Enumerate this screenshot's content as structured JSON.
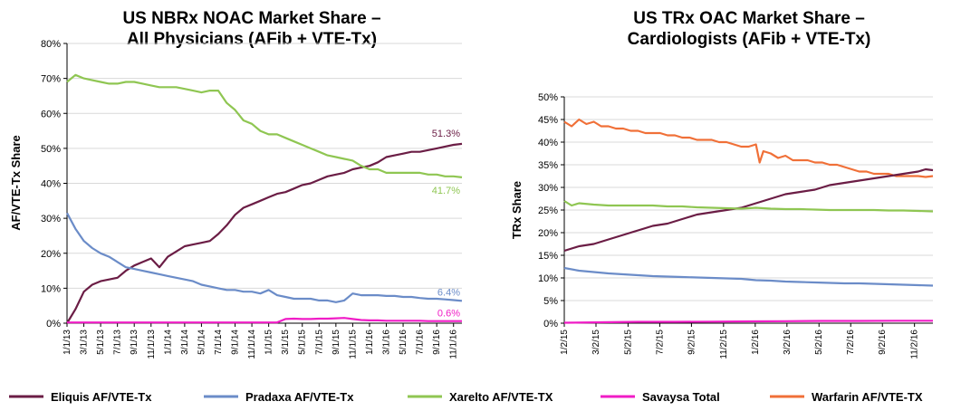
{
  "colors": {
    "eliquis": "#6b1d45",
    "pradaxa": "#6b8cc8",
    "xarelto": "#8fc652",
    "savaysa": "#f01cc6",
    "warfarin": "#f07038",
    "grid": "#d9d9d9",
    "axis": "#000000"
  },
  "legend": {
    "items": [
      {
        "key": "eliquis",
        "label": "Eliquis AF/VTE-Tx"
      },
      {
        "key": "pradaxa",
        "label": "Pradaxa AF/VTE-Tx"
      },
      {
        "key": "xarelto",
        "label": "Xarelto AF/VTE-TX"
      },
      {
        "key": "savaysa",
        "label": "Savaysa Total"
      },
      {
        "key": "warfarin",
        "label": "Warfarin AF/VTE-TX"
      }
    ]
  },
  "chart_data": [
    {
      "type": "line",
      "title_lines": [
        "US NBRx NOAC Market Share –",
        "All Physicians (AFib + VTE-Tx)"
      ],
      "ylabel": "AF/VTE-Tx  Share",
      "xlabel": "",
      "ylim": [
        0,
        80
      ],
      "yticks": [
        "0%",
        "10%",
        "20%",
        "30%",
        "40%",
        "50%",
        "60%",
        "70%",
        "80%"
      ],
      "x_range": [
        0,
        47
      ],
      "xticks": [
        {
          "x": 0,
          "label": "1/1/13"
        },
        {
          "x": 2,
          "label": "3/1/13"
        },
        {
          "x": 4,
          "label": "5/1/13"
        },
        {
          "x": 6,
          "label": "7/1/13"
        },
        {
          "x": 8,
          "label": "9/1/13"
        },
        {
          "x": 10,
          "label": "11/1/13"
        },
        {
          "x": 12,
          "label": "1/1/14"
        },
        {
          "x": 14,
          "label": "3/1/14"
        },
        {
          "x": 16,
          "label": "5/1/14"
        },
        {
          "x": 18,
          "label": "7/1/14"
        },
        {
          "x": 20,
          "label": "9/1/14"
        },
        {
          "x": 22,
          "label": "11/1/14"
        },
        {
          "x": 24,
          "label": "1/1/15"
        },
        {
          "x": 26,
          "label": "3/1/15"
        },
        {
          "x": 28,
          "label": "5/1/15"
        },
        {
          "x": 30,
          "label": "7/1/15"
        },
        {
          "x": 32,
          "label": "9/1/15"
        },
        {
          "x": 34,
          "label": "11/1/15"
        },
        {
          "x": 36,
          "label": "1/1/16"
        },
        {
          "x": 38,
          "label": "3/1/16"
        },
        {
          "x": 40,
          "label": "5/1/16"
        },
        {
          "x": 42,
          "label": "7/1/16"
        },
        {
          "x": 44,
          "label": "9/1/16"
        },
        {
          "x": 46,
          "label": "11/1/16"
        }
      ],
      "series": [
        {
          "key": "eliquis",
          "name": "Eliquis AF/VTE-Tx",
          "x": [
            0,
            1,
            2,
            3,
            4,
            5,
            6,
            7,
            8,
            9,
            10,
            11,
            12,
            13,
            14,
            15,
            16,
            17,
            18,
            19,
            20,
            21,
            22,
            23,
            24,
            25,
            26,
            27,
            28,
            29,
            30,
            31,
            32,
            33,
            34,
            35,
            36,
            37,
            38,
            39,
            40,
            41,
            42,
            43,
            44,
            45,
            46,
            47
          ],
          "values": [
            0,
            4,
            9,
            11,
            12,
            12.5,
            13,
            15,
            16.5,
            17.5,
            18.5,
            16,
            19,
            20.5,
            22,
            22.5,
            23,
            23.5,
            25.5,
            28,
            31,
            33,
            34,
            35,
            36,
            37,
            37.5,
            38.5,
            39.5,
            40,
            41,
            42,
            42.5,
            43,
            44,
            44.5,
            45,
            46,
            47.5,
            48,
            48.5,
            49,
            49,
            49.5,
            50,
            50.5,
            51,
            51.3
          ]
        },
        {
          "key": "pradaxa",
          "name": "Pradaxa AF/VTE-Tx",
          "x": [
            0,
            1,
            2,
            3,
            4,
            5,
            6,
            7,
            8,
            9,
            10,
            11,
            12,
            13,
            14,
            15,
            16,
            17,
            18,
            19,
            20,
            21,
            22,
            23,
            24,
            25,
            26,
            27,
            28,
            29,
            30,
            31,
            32,
            33,
            34,
            35,
            36,
            37,
            38,
            39,
            40,
            41,
            42,
            43,
            44,
            45,
            46,
            47
          ],
          "values": [
            31.5,
            27,
            23.5,
            21.5,
            20,
            19,
            17.5,
            16,
            15.5,
            15,
            14.5,
            14,
            13.5,
            13,
            12.5,
            12,
            11,
            10.5,
            10,
            9.5,
            9.5,
            9,
            9,
            8.5,
            9.5,
            8,
            7.5,
            7,
            7,
            7,
            6.5,
            6.5,
            6,
            6.5,
            8.5,
            8,
            8,
            8,
            7.8,
            7.8,
            7.5,
            7.5,
            7.2,
            7,
            7,
            6.8,
            6.6,
            6.4
          ]
        },
        {
          "key": "xarelto",
          "name": "Xarelto AF/VTE-TX",
          "x": [
            0,
            1,
            2,
            3,
            4,
            5,
            6,
            7,
            8,
            9,
            10,
            11,
            12,
            13,
            14,
            15,
            16,
            17,
            18,
            19,
            20,
            21,
            22,
            23,
            24,
            25,
            26,
            27,
            28,
            29,
            30,
            31,
            32,
            33,
            34,
            35,
            36,
            37,
            38,
            39,
            40,
            41,
            42,
            43,
            44,
            45,
            46,
            47
          ],
          "values": [
            69,
            71,
            70,
            69.5,
            69,
            68.5,
            68.5,
            69,
            69,
            68.5,
            68,
            67.5,
            67.5,
            67.5,
            67,
            66.5,
            66,
            66.5,
            66.5,
            63,
            61,
            58,
            57,
            55,
            54,
            54,
            53,
            52,
            51,
            50,
            49,
            48,
            47.5,
            47,
            46.5,
            45,
            44,
            44,
            43,
            43,
            43,
            43,
            43,
            42.5,
            42.5,
            42,
            42,
            41.7
          ]
        },
        {
          "key": "savaysa",
          "name": "Savaysa Total",
          "x": [
            0,
            1,
            2,
            3,
            4,
            5,
            6,
            7,
            8,
            9,
            10,
            11,
            12,
            13,
            14,
            15,
            16,
            17,
            18,
            19,
            20,
            21,
            22,
            23,
            24,
            25,
            26,
            27,
            28,
            29,
            30,
            31,
            32,
            33,
            34,
            35,
            36,
            37,
            38,
            39,
            40,
            41,
            42,
            43,
            44,
            45,
            46,
            47
          ],
          "values": [
            0.2,
            0.2,
            0.2,
            0.2,
            0.2,
            0.2,
            0.2,
            0.2,
            0.2,
            0.2,
            0.2,
            0.2,
            0.2,
            0.2,
            0.2,
            0.2,
            0.2,
            0.2,
            0.2,
            0.2,
            0.2,
            0.2,
            0.2,
            0.2,
            0.2,
            0.2,
            1.2,
            1.3,
            1.2,
            1.2,
            1.3,
            1.3,
            1.4,
            1.5,
            1.2,
            0.9,
            0.8,
            0.8,
            0.7,
            0.7,
            0.7,
            0.7,
            0.7,
            0.6,
            0.6,
            0.6,
            0.6,
            0.6
          ]
        }
      ],
      "end_labels": [
        {
          "key": "eliquis",
          "text": "51.3%",
          "value": 51.3,
          "dy": -12
        },
        {
          "key": "xarelto",
          "text": "41.7%",
          "value": 41.7,
          "dy": 14
        },
        {
          "key": "pradaxa",
          "text": "6.4%",
          "value": 6.4,
          "dy": -10
        },
        {
          "key": "savaysa",
          "text": "0.6%",
          "value": 0.6,
          "dy": -9
        }
      ]
    },
    {
      "type": "line",
      "title_lines": [
        "US TRx OAC Market Share –",
        "Cardiologists (AFib + VTE-Tx)"
      ],
      "ylabel": "TRx Share",
      "xlabel": "",
      "ylim": [
        0,
        50
      ],
      "yticks": [
        "0%",
        "5%",
        "10%",
        "15%",
        "20%",
        "25%",
        "30%",
        "35%",
        "40%",
        "45%",
        "50%"
      ],
      "x_range": [
        0,
        100
      ],
      "xticks": [
        {
          "x": 0,
          "label": "1/2/15"
        },
        {
          "x": 8.6,
          "label": "3/2/15"
        },
        {
          "x": 17.3,
          "label": "5/2/15"
        },
        {
          "x": 25.9,
          "label": "7/2/15"
        },
        {
          "x": 34.5,
          "label": "9/2/15"
        },
        {
          "x": 43.2,
          "label": "11/2/15"
        },
        {
          "x": 51.8,
          "label": "1/2/16"
        },
        {
          "x": 60.4,
          "label": "3/2/16"
        },
        {
          "x": 69.1,
          "label": "5/2/16"
        },
        {
          "x": 77.7,
          "label": "7/2/16"
        },
        {
          "x": 86.3,
          "label": "9/2/16"
        },
        {
          "x": 95.0,
          "label": "11/2/16"
        }
      ],
      "series": [
        {
          "key": "warfarin",
          "name": "Warfarin AF/VTE-TX",
          "x": [
            0,
            2,
            4,
            6,
            8,
            10,
            12,
            14,
            16,
            18,
            20,
            22,
            24,
            26,
            28,
            30,
            32,
            34,
            36,
            38,
            40,
            42,
            44,
            46,
            48,
            50,
            52,
            53,
            54,
            56,
            58,
            60,
            62,
            64,
            66,
            68,
            70,
            72,
            74,
            76,
            78,
            80,
            82,
            84,
            86,
            88,
            90,
            92,
            94,
            96,
            98,
            100
          ],
          "values": [
            44.5,
            43.5,
            45,
            44,
            44.5,
            43.5,
            43.5,
            43,
            43,
            42.5,
            42.5,
            42,
            42,
            42,
            41.5,
            41.5,
            41,
            41,
            40.5,
            40.5,
            40.5,
            40,
            40,
            39.5,
            39,
            39,
            39.5,
            35.5,
            38,
            37.5,
            36.5,
            37,
            36,
            36,
            36,
            35.5,
            35.5,
            35,
            35,
            34.5,
            34,
            33.5,
            33.5,
            33,
            33,
            33,
            32.5,
            32.5,
            32.5,
            32.5,
            32.3,
            32.5
          ]
        },
        {
          "key": "eliquis",
          "name": "Eliquis AF/VTE-Tx",
          "x": [
            0,
            4,
            8,
            12,
            16,
            20,
            24,
            28,
            32,
            36,
            40,
            44,
            48,
            50,
            52,
            54,
            56,
            60,
            64,
            68,
            72,
            76,
            80,
            84,
            88,
            92,
            96,
            98,
            100
          ],
          "values": [
            16,
            17,
            17.5,
            18.5,
            19.5,
            20.5,
            21.5,
            22,
            23,
            24,
            24.5,
            25,
            25.5,
            26,
            26.5,
            27,
            27.5,
            28.5,
            29,
            29.5,
            30.5,
            31,
            31.5,
            32,
            32.5,
            33,
            33.5,
            34,
            33.8
          ]
        },
        {
          "key": "xarelto",
          "name": "Xarelto AF/VTE-TX",
          "x": [
            0,
            2,
            4,
            8,
            12,
            16,
            20,
            24,
            28,
            32,
            36,
            40,
            44,
            48,
            52,
            56,
            60,
            64,
            68,
            72,
            76,
            80,
            84,
            88,
            92,
            96,
            100
          ],
          "values": [
            27,
            26,
            26.5,
            26.2,
            26,
            26,
            26,
            26,
            25.8,
            25.8,
            25.6,
            25.5,
            25.4,
            25.3,
            25.5,
            25.3,
            25.2,
            25.2,
            25.1,
            25,
            25,
            25,
            25,
            24.9,
            24.9,
            24.8,
            24.7
          ]
        },
        {
          "key": "pradaxa",
          "name": "Pradaxa AF/VTE-Tx",
          "x": [
            0,
            4,
            8,
            12,
            16,
            20,
            24,
            28,
            32,
            36,
            40,
            44,
            48,
            52,
            56,
            60,
            64,
            68,
            72,
            76,
            80,
            84,
            88,
            92,
            96,
            100
          ],
          "values": [
            12.2,
            11.6,
            11.3,
            11,
            10.8,
            10.6,
            10.4,
            10.3,
            10.2,
            10.1,
            10,
            9.9,
            9.8,
            9.5,
            9.4,
            9.2,
            9.1,
            9,
            8.9,
            8.8,
            8.8,
            8.7,
            8.6,
            8.5,
            8.4,
            8.3
          ]
        },
        {
          "key": "savaysa",
          "name": "Savaysa Total",
          "x": [
            0,
            10,
            20,
            30,
            40,
            50,
            60,
            70,
            80,
            90,
            100
          ],
          "values": [
            0.1,
            0.2,
            0.3,
            0.3,
            0.35,
            0.4,
            0.45,
            0.5,
            0.5,
            0.55,
            0.55
          ]
        }
      ]
    }
  ]
}
